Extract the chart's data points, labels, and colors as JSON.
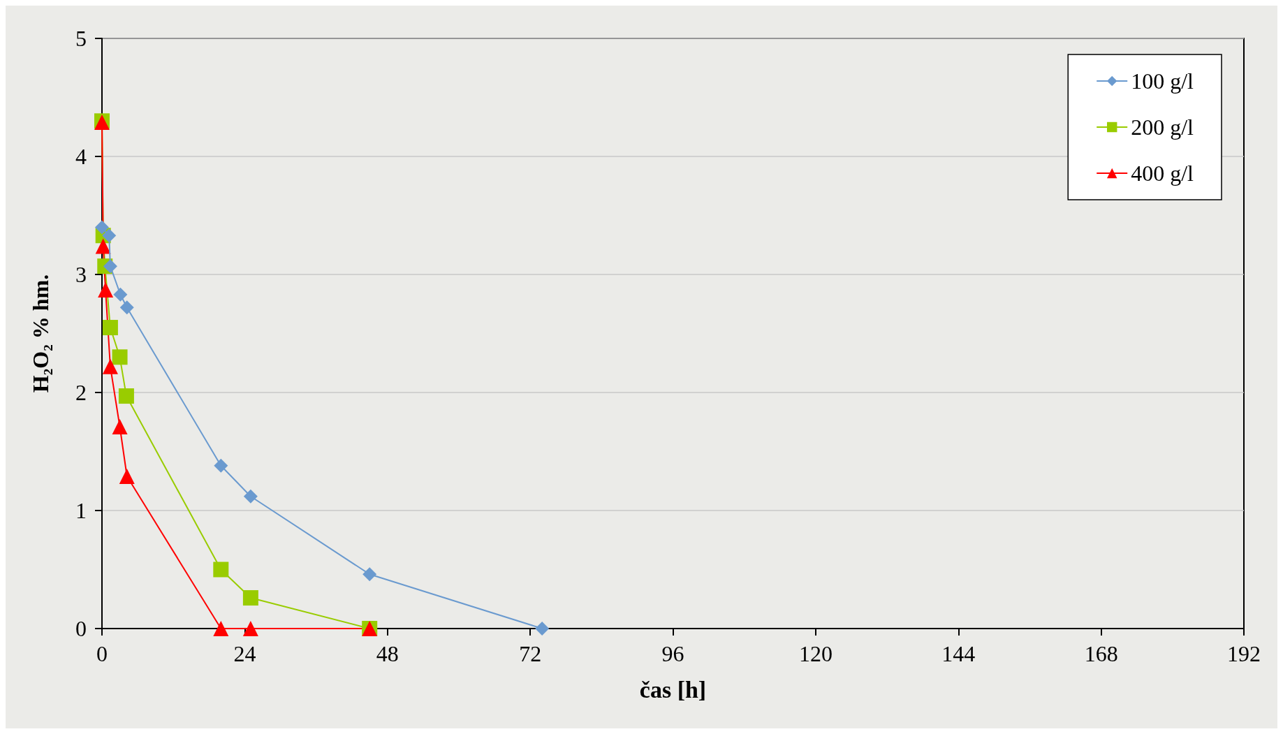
{
  "chart_data": {
    "type": "line",
    "xlabel": "čas [h]",
    "ylabel": "H₂O₂ % hm.",
    "xlim": [
      0,
      192
    ],
    "xticks": [
      0,
      24,
      48,
      72,
      96,
      120,
      144,
      168,
      192
    ],
    "ylim": [
      0,
      5
    ],
    "yticks": [
      0,
      1,
      2,
      3,
      4,
      5
    ],
    "grid": "y",
    "legend": "top right",
    "line_style": "solid",
    "series": [
      {
        "name": "100 g/l",
        "color": "#6a9acf",
        "marker": "diamond",
        "x": [
          0,
          1.2,
          1.4,
          3.1,
          4.2,
          20,
          25,
          45,
          74
        ],
        "values": [
          3.4,
          3.33,
          3.07,
          2.83,
          2.72,
          1.38,
          1.12,
          0.46,
          0
        ]
      },
      {
        "name": "200 g/l",
        "color": "#99cc00",
        "marker": "square",
        "x": [
          0,
          0.2,
          0.5,
          1.4,
          3,
          4.1,
          20,
          25,
          45
        ],
        "values": [
          4.3,
          3.33,
          3.07,
          2.55,
          2.3,
          1.97,
          0.5,
          0.26,
          0
        ]
      },
      {
        "name": "400 g/l",
        "color": "#ff0000",
        "marker": "triangle",
        "x": [
          0,
          0.2,
          0.6,
          1.4,
          3,
          4.2,
          20,
          25,
          45
        ],
        "values": [
          4.29,
          3.24,
          2.87,
          2.22,
          1.71,
          1.29,
          0,
          0,
          0
        ]
      }
    ]
  }
}
